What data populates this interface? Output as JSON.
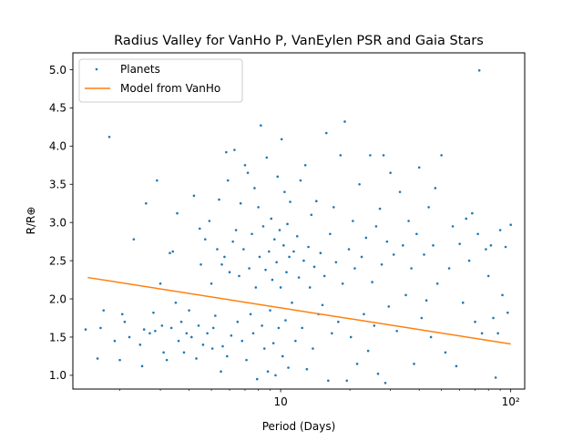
{
  "chart_data": {
    "type": "scatter",
    "title": "Radius Valley for VanHo P, VanEylen PSR and Gaia Stars",
    "xlabel": "Period (Days)",
    "ylabel": "R/R⊕",
    "xscale": "log",
    "xlim": [
      1.25,
      115
    ],
    "ylim": [
      0.82,
      5.22
    ],
    "x_ticks": [
      {
        "value": 10,
        "label": "10"
      },
      {
        "value": 100,
        "label": "10²"
      }
    ],
    "y_ticks": [
      {
        "value": 1.0,
        "label": "1.0"
      },
      {
        "value": 1.5,
        "label": "1.5"
      },
      {
        "value": 2.0,
        "label": "2.0"
      },
      {
        "value": 2.5,
        "label": "2.5"
      },
      {
        "value": 3.0,
        "label": "3.0"
      },
      {
        "value": 3.5,
        "label": "3.5"
      },
      {
        "value": 4.0,
        "label": "4.0"
      },
      {
        "value": 4.5,
        "label": "4.5"
      },
      {
        "value": 5.0,
        "label": "5.0"
      }
    ],
    "grid": false,
    "legend_position": "top-left",
    "colors": {
      "planets": "#1f77b4",
      "model": "#ff7f0e"
    },
    "series": [
      {
        "name": "Planets",
        "type": "scatter",
        "points": [
          [
            1.42,
            1.6
          ],
          [
            1.6,
            1.22
          ],
          [
            1.65,
            1.62
          ],
          [
            1.7,
            1.85
          ],
          [
            1.8,
            4.12
          ],
          [
            1.9,
            1.45
          ],
          [
            2.0,
            1.2
          ],
          [
            2.05,
            1.8
          ],
          [
            2.1,
            1.7
          ],
          [
            2.2,
            1.5
          ],
          [
            2.3,
            2.78
          ],
          [
            2.45,
            1.4
          ],
          [
            2.5,
            1.12
          ],
          [
            2.55,
            1.6
          ],
          [
            2.6,
            3.25
          ],
          [
            2.7,
            1.55
          ],
          [
            2.8,
            1.82
          ],
          [
            2.85,
            1.58
          ],
          [
            2.9,
            3.55
          ],
          [
            3.0,
            2.2
          ],
          [
            3.05,
            1.65
          ],
          [
            3.1,
            1.3
          ],
          [
            3.2,
            1.2
          ],
          [
            3.3,
            2.6
          ],
          [
            3.35,
            1.62
          ],
          [
            3.4,
            2.62
          ],
          [
            3.5,
            1.95
          ],
          [
            3.55,
            3.12
          ],
          [
            3.6,
            1.45
          ],
          [
            3.7,
            1.7
          ],
          [
            3.8,
            1.3
          ],
          [
            3.9,
            1.55
          ],
          [
            4.0,
            1.85
          ],
          [
            4.1,
            1.5
          ],
          [
            4.2,
            3.35
          ],
          [
            4.3,
            1.22
          ],
          [
            4.4,
            1.65
          ],
          [
            4.45,
            2.92
          ],
          [
            4.5,
            2.45
          ],
          [
            4.6,
            1.4
          ],
          [
            4.7,
            2.78
          ],
          [
            4.8,
            1.55
          ],
          [
            4.9,
            3.02
          ],
          [
            5.0,
            2.2
          ],
          [
            5.05,
            1.35
          ],
          [
            5.1,
            1.62
          ],
          [
            5.2,
            1.78
          ],
          [
            5.3,
            2.65
          ],
          [
            5.4,
            3.3
          ],
          [
            5.5,
            1.05
          ],
          [
            5.55,
            2.45
          ],
          [
            5.6,
            1.38
          ],
          [
            5.7,
            2.55
          ],
          [
            5.8,
            3.92
          ],
          [
            5.85,
            1.25
          ],
          [
            5.9,
            3.55
          ],
          [
            6.0,
            2.35
          ],
          [
            6.1,
            1.52
          ],
          [
            6.2,
            2.75
          ],
          [
            6.3,
            3.95
          ],
          [
            6.4,
            2.9
          ],
          [
            6.5,
            1.7
          ],
          [
            6.6,
            2.3
          ],
          [
            6.7,
            3.25
          ],
          [
            6.8,
            1.45
          ],
          [
            6.9,
            2.65
          ],
          [
            7.0,
            3.75
          ],
          [
            7.1,
            1.2
          ],
          [
            7.2,
            3.65
          ],
          [
            7.3,
            2.4
          ],
          [
            7.4,
            1.8
          ],
          [
            7.5,
            2.85
          ],
          [
            7.6,
            1.55
          ],
          [
            7.7,
            3.45
          ],
          [
            7.8,
            2.15
          ],
          [
            7.9,
            0.95
          ],
          [
            8.0,
            3.2
          ],
          [
            8.1,
            2.55
          ],
          [
            8.2,
            4.27
          ],
          [
            8.3,
            1.65
          ],
          [
            8.4,
            2.95
          ],
          [
            8.5,
            1.35
          ],
          [
            8.6,
            2.38
          ],
          [
            8.7,
            3.85
          ],
          [
            8.8,
            1.05
          ],
          [
            8.9,
            2.62
          ],
          [
            9.0,
            1.85
          ],
          [
            9.1,
            3.05
          ],
          [
            9.2,
            2.25
          ],
          [
            9.3,
            1.42
          ],
          [
            9.4,
            2.78
          ],
          [
            9.5,
            1.0
          ],
          [
            9.6,
            2.48
          ],
          [
            9.7,
            3.6
          ],
          [
            9.8,
            1.62
          ],
          [
            9.9,
            2.9
          ],
          [
            10.0,
            2.15
          ],
          [
            10.1,
            4.09
          ],
          [
            10.2,
            1.25
          ],
          [
            10.3,
            2.7
          ],
          [
            10.4,
            3.4
          ],
          [
            10.5,
            1.72
          ],
          [
            10.6,
            2.35
          ],
          [
            10.7,
            2.98
          ],
          [
            10.8,
            1.1
          ],
          [
            10.9,
            2.55
          ],
          [
            11.0,
            3.27
          ],
          [
            11.2,
            1.95
          ],
          [
            11.4,
            2.62
          ],
          [
            11.6,
            1.45
          ],
          [
            11.8,
            2.82
          ],
          [
            12.0,
            2.28
          ],
          [
            12.2,
            3.55
          ],
          [
            12.4,
            1.62
          ],
          [
            12.6,
            2.5
          ],
          [
            12.8,
            3.75
          ],
          [
            13.0,
            1.08
          ],
          [
            13.2,
            2.68
          ],
          [
            13.4,
            2.15
          ],
          [
            13.6,
            3.1
          ],
          [
            13.8,
            1.35
          ],
          [
            14.0,
            2.42
          ],
          [
            14.3,
            3.28
          ],
          [
            14.6,
            1.8
          ],
          [
            14.9,
            2.6
          ],
          [
            15.2,
            1.92
          ],
          [
            15.5,
            2.3
          ],
          [
            15.8,
            4.17
          ],
          [
            16.1,
            0.93
          ],
          [
            16.4,
            2.85
          ],
          [
            16.7,
            1.55
          ],
          [
            17.0,
            3.2
          ],
          [
            17.4,
            2.48
          ],
          [
            17.8,
            1.7
          ],
          [
            18.2,
            3.88
          ],
          [
            18.6,
            2.2
          ],
          [
            19.0,
            4.32
          ],
          [
            19.4,
            0.93
          ],
          [
            19.8,
            2.65
          ],
          [
            20.2,
            1.5
          ],
          [
            20.6,
            3.02
          ],
          [
            21.0,
            2.4
          ],
          [
            21.5,
            1.15
          ],
          [
            22.0,
            3.5
          ],
          [
            22.5,
            2.55
          ],
          [
            23.0,
            1.8
          ],
          [
            23.5,
            2.8
          ],
          [
            24.0,
            1.32
          ],
          [
            24.5,
            3.88
          ],
          [
            25.0,
            2.22
          ],
          [
            25.5,
            1.65
          ],
          [
            26.0,
            2.95
          ],
          [
            26.5,
            1.02
          ],
          [
            27.0,
            3.18
          ],
          [
            27.5,
            2.45
          ],
          [
            28.0,
            3.88
          ],
          [
            28.5,
            0.9
          ],
          [
            29.0,
            2.75
          ],
          [
            29.5,
            1.9
          ],
          [
            30.0,
            3.65
          ],
          [
            31.0,
            2.58
          ],
          [
            32.0,
            1.58
          ],
          [
            33.0,
            3.4
          ],
          [
            34.0,
            2.7
          ],
          [
            35.0,
            2.05
          ],
          [
            36.0,
            3.02
          ],
          [
            37.0,
            2.4
          ],
          [
            38.0,
            1.15
          ],
          [
            39.0,
            2.85
          ],
          [
            40.0,
            3.72
          ],
          [
            41.0,
            1.75
          ],
          [
            42.0,
            2.58
          ],
          [
            43.0,
            1.98
          ],
          [
            44.0,
            3.2
          ],
          [
            45.0,
            1.5
          ],
          [
            46.0,
            2.7
          ],
          [
            47.0,
            3.45
          ],
          [
            48.0,
            2.2
          ],
          [
            50.0,
            3.88
          ],
          [
            52.0,
            1.3
          ],
          [
            54.0,
            2.4
          ],
          [
            56.0,
            2.95
          ],
          [
            58.0,
            1.12
          ],
          [
            60.0,
            2.72
          ],
          [
            62.0,
            1.95
          ],
          [
            64.0,
            3.05
          ],
          [
            66.0,
            2.5
          ],
          [
            68.0,
            3.12
          ],
          [
            70.0,
            1.7
          ],
          [
            72.0,
            2.85
          ],
          [
            73.0,
            4.99
          ],
          [
            75.0,
            1.55
          ],
          [
            78.0,
            2.65
          ],
          [
            80.0,
            2.3
          ],
          [
            82.0,
            2.7
          ],
          [
            84.0,
            1.75
          ],
          [
            86.0,
            0.97
          ],
          [
            88.0,
            1.55
          ],
          [
            90.0,
            2.9
          ],
          [
            92.0,
            2.05
          ],
          [
            95.0,
            2.68
          ],
          [
            97.0,
            1.82
          ],
          [
            100.0,
            2.97
          ]
        ]
      },
      {
        "name": "Model from VanHo",
        "type": "line",
        "points": [
          [
            1.45,
            2.28
          ],
          [
            100,
            1.41
          ]
        ]
      }
    ]
  }
}
